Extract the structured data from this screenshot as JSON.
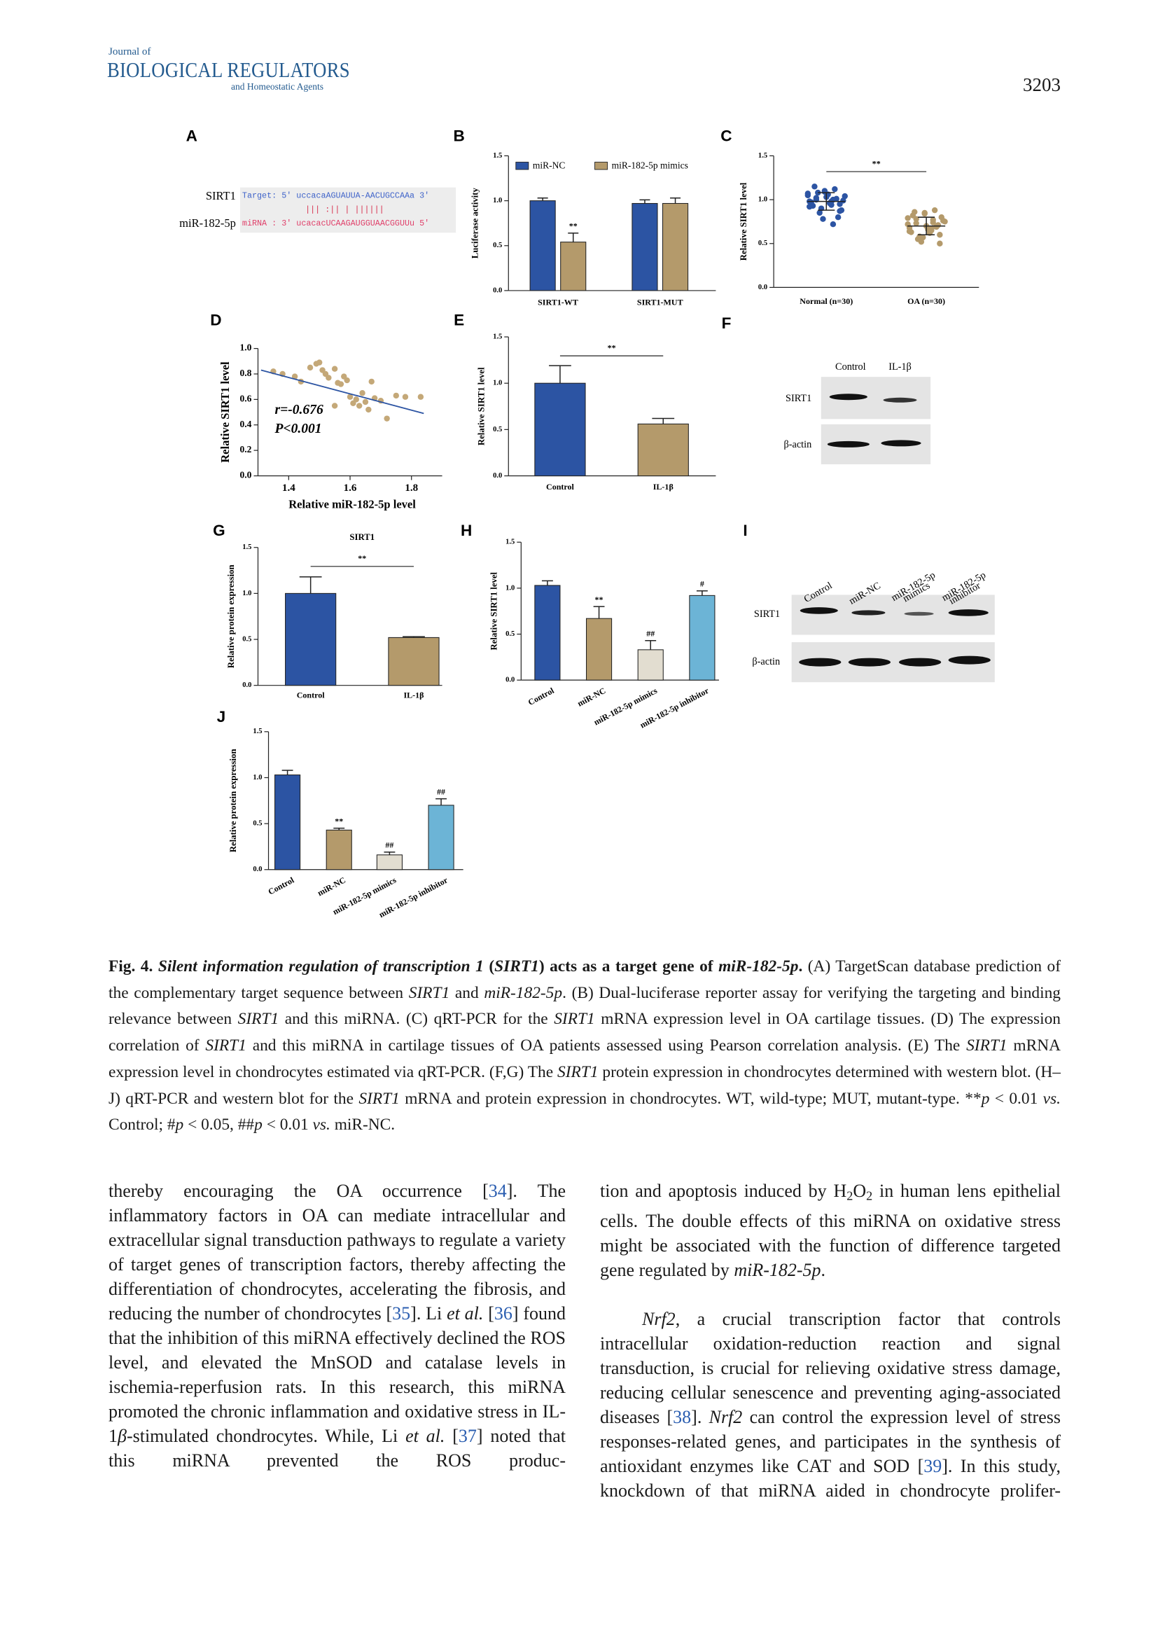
{
  "header": {
    "journal_line1": "Journal of",
    "journal_name": "BIOLOGICAL REGULATORS",
    "journal_line3": "and Homeostatic Agents",
    "page_number": "3203"
  },
  "figure": {
    "panel_a": {
      "panel": "A",
      "gene": "SIRT1",
      "target_seq": "Target: 5' uccacaAGUAUUA-AACUGCCAAa 3'",
      "pairing": "||| :|| | ||||||",
      "mirna": "miR-182-5p",
      "mirna_seq": "miRNA : 3' ucacacUCAAGAUGGUAACGGUUu 5'"
    },
    "panel_f": {
      "panel": "F",
      "lanes": [
        "Control",
        "IL-1β"
      ],
      "rows": [
        "SIRT1",
        "β-actin"
      ]
    },
    "panel_i": {
      "panel": "I",
      "lanes": [
        [
          "Control"
        ],
        [
          "miR-NC"
        ],
        [
          "miR-182-5p",
          "mimics"
        ],
        [
          "miR-182-5p",
          "inhibitor"
        ]
      ],
      "rows": [
        "SIRT1",
        "β-actin"
      ]
    }
  },
  "chart_data": [
    {
      "panel": "B",
      "type": "bar",
      "ylabel": "Luciferase activity",
      "categories": [
        "SIRT1-WT",
        "SIRT1-MUT"
      ],
      "series": [
        {
          "name": "miR-NC",
          "color": "#2c54a3",
          "values": [
            1.0,
            0.97
          ],
          "errors": [
            0.03,
            0.04
          ]
        },
        {
          "name": "miR-182-5p mimics",
          "color": "#b49a6b",
          "values": [
            0.54,
            0.97
          ],
          "errors": [
            0.1,
            0.06
          ],
          "significance": [
            "**",
            null
          ]
        }
      ],
      "ylim": [
        0,
        1.5
      ],
      "yticks": [
        {
          "value": 0,
          "label": "0.0"
        },
        0.5,
        {
          "value": 1,
          "label": "1.0"
        },
        1.5
      ]
    },
    {
      "panel": "C",
      "type": "dot",
      "ylabel": "Relative SIRT1 level",
      "categories": [
        "Normal (n=30)",
        "OA (n=30)"
      ],
      "comparison": "**",
      "groups": [
        {
          "color": "#2c54a3",
          "mean": 0.98,
          "sd": 0.1,
          "values": [
            1.05,
            0.98,
            1.02,
            0.95,
            1.1,
            0.92,
            1.0,
            1.08,
            0.88,
            1.03,
            0.97,
            1.12,
            0.85,
            0.99,
            1.06,
            0.93,
            1.01,
            0.9,
            1.04,
            0.96,
            1.15,
            0.8,
            0.78,
            1.07,
            0.94,
            1.0,
            0.87,
            1.09,
            0.98,
            0.72
          ]
        },
        {
          "color": "#b49a6b",
          "mean": 0.7,
          "sd": 0.1,
          "values": [
            0.72,
            0.65,
            0.78,
            0.6,
            0.85,
            0.68,
            0.74,
            0.55,
            0.8,
            0.7,
            0.63,
            0.88,
            0.58,
            0.76,
            0.66,
            0.82,
            0.69,
            0.52,
            0.75,
            0.62,
            0.86,
            0.71,
            0.57,
            0.79,
            0.67,
            0.73,
            0.5,
            0.84,
            0.64,
            0.77
          ]
        }
      ],
      "ylim": [
        0,
        1.5
      ],
      "yticks": [
        {
          "value": 0,
          "label": "0.0"
        },
        0.5,
        {
          "value": 1,
          "label": "1.0"
        },
        1.5
      ]
    },
    {
      "panel": "D",
      "type": "scatter",
      "xlabel": "Relative miR-182-5p level",
      "ylabel": "Relative SIRT1 level",
      "color": "#c4a878",
      "x": [
        1.35,
        1.38,
        1.42,
        1.44,
        1.47,
        1.49,
        1.5,
        1.51,
        1.52,
        1.53,
        1.55,
        1.56,
        1.57,
        1.58,
        1.59,
        1.6,
        1.61,
        1.62,
        1.63,
        1.64,
        1.65,
        1.66,
        1.67,
        1.68,
        1.7,
        1.72,
        1.75,
        1.78,
        1.83,
        1.55
      ],
      "values": [
        0.82,
        0.8,
        0.78,
        0.74,
        0.85,
        0.88,
        0.89,
        0.83,
        0.8,
        0.77,
        0.84,
        0.73,
        0.72,
        0.78,
        0.75,
        0.62,
        0.57,
        0.6,
        0.55,
        0.65,
        0.58,
        0.52,
        0.74,
        0.61,
        0.59,
        0.45,
        0.63,
        0.62,
        0.62,
        0.55
      ],
      "fit_line": {
        "color": "#2c54a3",
        "x": [
          1.31,
          1.84
        ],
        "values": [
          0.83,
          0.49
        ]
      },
      "annotations": [
        "r=-0.676",
        "P<0.001"
      ],
      "xlim": [
        1.3,
        1.9
      ],
      "xticks": [
        1.4,
        1.6,
        1.8
      ],
      "ylim": [
        0,
        1.0
      ],
      "yticks": [
        {
          "value": 0,
          "label": "0.0"
        },
        0.2,
        0.4,
        0.6,
        0.8,
        {
          "value": 1,
          "label": "1.0"
        }
      ]
    },
    {
      "panel": "E",
      "type": "bar",
      "ylabel": "Relative SIRT1 level",
      "categories": [
        "Control",
        "IL-1β"
      ],
      "comparison": "**",
      "values": [
        1.0,
        0.56
      ],
      "errors": [
        0.19,
        0.06
      ],
      "colors": [
        "#2c54a3",
        "#b49a6b"
      ],
      "ylim": [
        0,
        1.5
      ],
      "yticks": [
        {
          "value": 0,
          "label": "0.0"
        },
        0.5,
        {
          "value": 1,
          "label": "1.0"
        },
        1.5
      ]
    },
    {
      "panel": "G",
      "type": "bar",
      "title": "SIRT1",
      "ylabel": "Relative protein expression",
      "categories": [
        "Control",
        "IL-1β"
      ],
      "comparison": "**",
      "values": [
        1.0,
        0.52
      ],
      "errors": [
        0.18,
        0.01
      ],
      "colors": [
        "#2c54a3",
        "#b49a6b"
      ],
      "ylim": [
        0,
        1.5
      ],
      "yticks": [
        {
          "value": 0,
          "label": "0.0"
        },
        0.5,
        {
          "value": 1,
          "label": "1.0"
        },
        1.5
      ]
    },
    {
      "panel": "H",
      "type": "bar",
      "ylabel": "Relative SIRT1 level",
      "categories": [
        "Control",
        "miR-NC",
        "miR-182-5p mimics",
        "miR-182-5p inhibitor"
      ],
      "values": [
        1.03,
        0.67,
        0.33,
        0.92
      ],
      "errors": [
        0.05,
        0.13,
        0.1,
        0.05
      ],
      "significance": [
        null,
        "**",
        "##",
        "#"
      ],
      "colors": [
        "#2c54a3",
        "#b49a6b",
        "#e2ddd0",
        "#6cb4d6"
      ],
      "ylim": [
        0,
        1.5
      ],
      "yticks": [
        {
          "value": 0,
          "label": "0.0"
        },
        0.5,
        {
          "value": 1,
          "label": "1.0"
        },
        1.5
      ]
    },
    {
      "panel": "J",
      "type": "bar",
      "ylabel": "Relative protein expression",
      "categories": [
        "Control",
        "miR-NC",
        "miR-182-5p mimics",
        "miR-182-5p inhibitor"
      ],
      "values": [
        1.03,
        0.43,
        0.16,
        0.7
      ],
      "errors": [
        0.05,
        0.02,
        0.03,
        0.07
      ],
      "significance": [
        null,
        "**",
        "##",
        "##"
      ],
      "colors": [
        "#2c54a3",
        "#b49a6b",
        "#e2ddd0",
        "#6cb4d6"
      ],
      "ylim": [
        0,
        1.5
      ],
      "yticks": [
        {
          "value": 0,
          "label": "0.0"
        },
        0.5,
        {
          "value": 1,
          "label": "1.0"
        },
        1.5
      ]
    }
  ],
  "caption": {
    "runs": [
      {
        "text": "Fig. 4. ",
        "style": "bold"
      },
      {
        "text": "Silent information regulation of transcription 1",
        "style": "bold-italic"
      },
      {
        "text": " (",
        "style": "bold"
      },
      {
        "text": "SIRT1",
        "style": "bold-italic"
      },
      {
        "text": ") acts as a target gene of ",
        "style": "bold"
      },
      {
        "text": "miR-182-5p",
        "style": "bold-italic"
      },
      {
        "text": ".",
        "style": "bold"
      },
      {
        "text": " (A) TargetScan database prediction of the complementary target sequence between "
      },
      {
        "text": "SIRT1",
        "style": "italic"
      },
      {
        "text": " and "
      },
      {
        "text": "miR-182-5p",
        "style": "italic"
      },
      {
        "text": ". (B) Dual-luciferase reporter assay for verifying the targeting and binding relevance between "
      },
      {
        "text": "SIRT1",
        "style": "italic"
      },
      {
        "text": " and this miRNA. (C) qRT-PCR for the "
      },
      {
        "text": "SIRT1",
        "style": "italic"
      },
      {
        "text": " mRNA expression level in OA cartilage tissues. (D) The expression correlation of "
      },
      {
        "text": "SIRT1",
        "style": "italic"
      },
      {
        "text": " and this miRNA in cartilage tissues of OA patients assessed using Pearson correlation analysis. (E) The "
      },
      {
        "text": "SIRT1",
        "style": "italic"
      },
      {
        "text": " mRNA expression level in chondrocytes estimated via qRT-PCR. (F,G) The "
      },
      {
        "text": "SIRT1",
        "style": "italic"
      },
      {
        "text": " protein expression in chondrocytes determined with western blot. (H–J) qRT-PCR and western blot for the "
      },
      {
        "text": "SIRT1",
        "style": "italic"
      },
      {
        "text": " mRNA and protein expression in chondrocytes. WT, wild-type; MUT, mutant-type. **"
      },
      {
        "text": "p",
        "style": "italic"
      },
      {
        "text": " < 0.01 "
      },
      {
        "text": "vs.",
        "style": "italic"
      },
      {
        "text": " Control; #"
      },
      {
        "text": "p",
        "style": "italic"
      },
      {
        "text": " < 0.05, ##"
      },
      {
        "text": "p",
        "style": "italic"
      },
      {
        "text": " < 0.01 "
      },
      {
        "text": "vs.",
        "style": "italic"
      },
      {
        "text": " miR-NC."
      }
    ]
  },
  "body": {
    "left_column": [
      {
        "runs": [
          {
            "text": "thereby encouraging the OA occurrence ["
          },
          {
            "text": "34",
            "style": "link"
          },
          {
            "text": "]. The inflammatory factors in OA can mediate intracellular and extracellular signal transduction pathways to regulate a variety of target genes of transcription factors, thereby affecting the differentiation of chondrocytes, accelerating the fibrosis, and reducing the number of chondrocytes ["
          },
          {
            "text": "35",
            "style": "link"
          },
          {
            "text": "]. Li "
          },
          {
            "text": "et al.",
            "style": "italic"
          },
          {
            "text": " ["
          },
          {
            "text": "36",
            "style": "link"
          },
          {
            "text": "] found that the inhibition of this miRNA effectively declined the ROS level, and elevated the MnSOD and catalase levels in ischemia-reperfusion rats. In this research, this miRNA promoted the chronic inflammation and oxidative stress in IL-1"
          },
          {
            "text": "β",
            "style": "italic"
          },
          {
            "text": "-stimulated chondrocytes. While, Li "
          },
          {
            "text": "et al.",
            "style": "italic"
          },
          {
            "text": " ["
          },
          {
            "text": "37",
            "style": "link"
          },
          {
            "text": "] noted that this miRNA prevented the ROS produc-"
          }
        ]
      }
    ],
    "right_column": [
      {
        "runs": [
          {
            "text": "tion and apoptosis induced by H"
          },
          {
            "text": "2",
            "style": "sub"
          },
          {
            "text": "O"
          },
          {
            "text": "2",
            "style": "sub"
          },
          {
            "text": " in human lens epithelial cells. The double effects of this miRNA on oxidative stress might be associated with the function of difference targeted gene regulated by "
          },
          {
            "text": "miR-182-5p",
            "style": "italic"
          },
          {
            "text": "."
          }
        ]
      },
      {
        "runs": [
          {
            "text": "Nrf2",
            "style": "italic"
          },
          {
            "text": ", a crucial transcription factor that controls intracellular oxidation-reduction reaction and signal transduction, is crucial for relieving oxidative stress damage, reducing cellular senescence and preventing aging-associated diseases ["
          },
          {
            "text": "38",
            "style": "link"
          },
          {
            "text": "]. "
          },
          {
            "text": "Nrf2",
            "style": "italic"
          },
          {
            "text": " can control the expression level of stress responses-related genes, and participates in the synthesis of antioxidant enzymes like CAT and SOD ["
          },
          {
            "text": "39",
            "style": "link"
          },
          {
            "text": "]. In this study, knockdown of that miRNA aided in chondrocyte prolifer-"
          }
        ]
      }
    ]
  }
}
